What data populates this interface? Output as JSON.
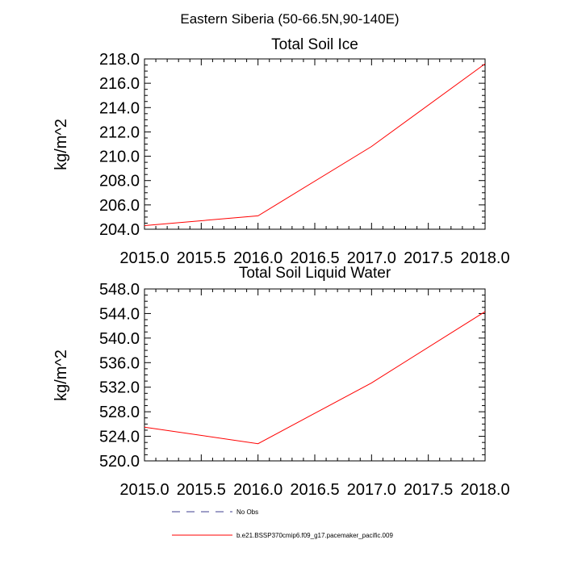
{
  "figure": {
    "title": "Eastern Siberia (50-66.5N,90-140E)"
  },
  "chart_data": [
    {
      "type": "line",
      "title": "Total Soil Ice",
      "ylabel": "kg/m^2",
      "xlabel": "",
      "xlim": [
        2015.0,
        2018.0
      ],
      "ylim": [
        204.0,
        218.0
      ],
      "x_ticks": [
        "2015.0",
        "2015.5",
        "2016.0",
        "2016.5",
        "2017.0",
        "2017.5",
        "2018.0"
      ],
      "y_ticks": [
        "204.0",
        "206.0",
        "208.0",
        "210.0",
        "212.0",
        "214.0",
        "216.0",
        "218.0"
      ],
      "x": [
        2015,
        2016,
        2017,
        2018
      ],
      "series": [
        {
          "values": [
            204.3,
            205.1,
            210.8,
            217.6
          ],
          "color": "#ff0000"
        }
      ]
    },
    {
      "type": "line",
      "title": "Total Soil Liquid Water",
      "ylabel": "kg/m^2",
      "xlabel": "",
      "xlim": [
        2015.0,
        2018.0
      ],
      "ylim": [
        520.0,
        548.0
      ],
      "x_ticks": [
        "2015.0",
        "2015.5",
        "2016.0",
        "2016.5",
        "2017.0",
        "2017.5",
        "2018.0"
      ],
      "y_ticks": [
        "520.0",
        "524.0",
        "528.0",
        "532.0",
        "536.0",
        "540.0",
        "544.0",
        "548.0"
      ],
      "x": [
        2015,
        2016,
        2017,
        2018
      ],
      "series": [
        {
          "values": [
            525.5,
            522.8,
            532.7,
            544.3
          ],
          "color": "#ff0000"
        }
      ]
    }
  ],
  "legend": {
    "items": [
      {
        "label": "No Obs",
        "style": "dashed",
        "color": "#3f3f8f"
      },
      {
        "label": "b.e21.BSSP370cmip6.f09_g17.pacemaker_pacific.009",
        "style": "solid",
        "color": "#ff0000"
      }
    ]
  }
}
